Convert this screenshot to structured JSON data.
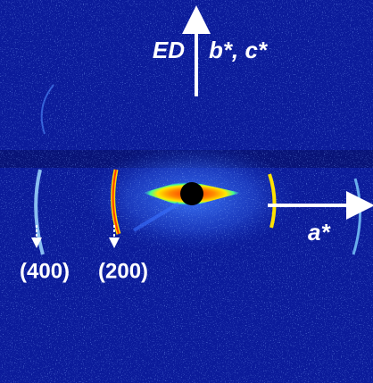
{
  "labels": {
    "direction": "ED",
    "axis_vertical": "b*, c*",
    "axis_horizontal": "a*",
    "peak_outer": "(400)",
    "peak_inner": "(200)"
  }
}
